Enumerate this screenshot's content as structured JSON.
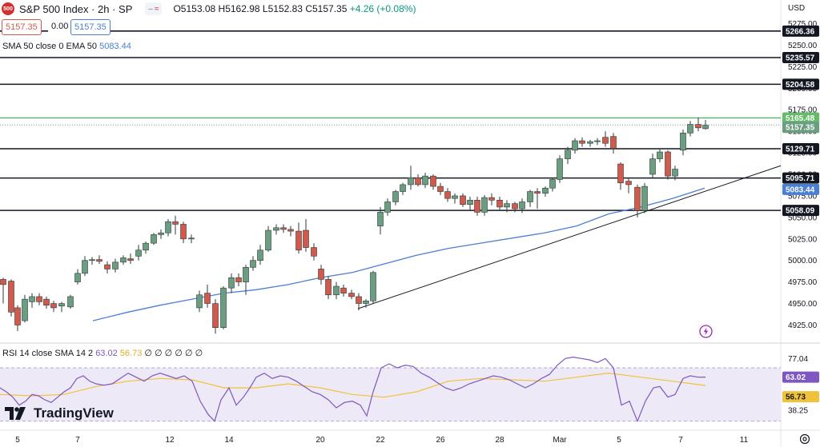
{
  "header": {
    "logo_text": "500",
    "title": "S&P 500 Index · 2h · SP",
    "toggle_minus": "–",
    "toggle_wave": "≈",
    "open": "O5153.08",
    "high": "H5162.98",
    "low": "L5152.83",
    "close": "C5157.35",
    "change": "+4.26 (+0.08%)"
  },
  "price_boxes": {
    "sell": "5157.35",
    "spread": "0.00",
    "buy": "5157.35"
  },
  "indicator_sma": {
    "label": "SMA 50 close 0 EMA 50",
    "value": "5083.44"
  },
  "indicator_rsi": {
    "label": "RSI 14 close SMA 14 2",
    "value1": "63.02",
    "value2": "56.73",
    "placeholders": "∅ ∅ ∅ ∅ ∅ ∅"
  },
  "axis": {
    "currency": "USD",
    "price_ticks": [
      "5275.00",
      "5250.00",
      "5225.00",
      "5200.00",
      "5175.00",
      "5150.00",
      "5125.00",
      "5100.00",
      "5075.00",
      "5050.00",
      "5025.00",
      "5000.00",
      "4975.00",
      "4950.00",
      "4925.00"
    ],
    "rsi_ticks": [
      "77.04",
      "38.25"
    ],
    "x_ticks": [
      "5",
      "7",
      "12",
      "14",
      "20",
      "22",
      "26",
      "28",
      "Mar",
      "5",
      "7",
      "11"
    ]
  },
  "branding": {
    "name": "TradingView"
  },
  "colors": {
    "up": "#6b9e80",
    "down": "#d25a4d",
    "sma": "#4a7fd1",
    "rsi": "#7e57c2",
    "rsi_sma": "#f0c23c",
    "green_line": "#4caf50",
    "rsi_band": "#ede9f7"
  },
  "chart_data": {
    "type": "candlestick",
    "price_range": [
      4905,
      5282
    ],
    "rsi_range": [
      25,
      82
    ],
    "horizontal_levels": [
      {
        "value": 5266.36,
        "label": "5266.36"
      },
      {
        "value": 5235.57,
        "label": "5235.57"
      },
      {
        "value": 5204.58,
        "label": "5204.58"
      },
      {
        "value": 5129.71,
        "label": "5129.71"
      },
      {
        "value": 5095.71,
        "label": "5095.71"
      },
      {
        "value": 5058.09,
        "label": "5058.09"
      }
    ],
    "green_level": {
      "value": 5165.48,
      "label": "5165.48"
    },
    "last_price": {
      "value": 5157.35,
      "label": "5157.35"
    },
    "sma_last": {
      "value": 5083.44,
      "label": "5083.44"
    },
    "rsi_last": {
      "value": 63.02,
      "label": "63.02"
    },
    "rsi_sma_last": {
      "value": 56.73,
      "label": "56.73"
    },
    "trendline": [
      [
        447,
        4944
      ],
      [
        975,
        5110
      ]
    ],
    "candles": [
      {
        "x": 4,
        "o": 4978,
        "h": 4980,
        "l": 4950,
        "c": 4972
      },
      {
        "x": 14,
        "o": 4976,
        "h": 4978,
        "l": 4935,
        "c": 4940
      },
      {
        "x": 22,
        "o": 4945,
        "h": 4948,
        "l": 4918,
        "c": 4925
      },
      {
        "x": 31,
        "o": 4930,
        "h": 4960,
        "l": 4928,
        "c": 4955
      },
      {
        "x": 40,
        "o": 4952,
        "h": 4962,
        "l": 4945,
        "c": 4958
      },
      {
        "x": 49,
        "o": 4958,
        "h": 4962,
        "l": 4948,
        "c": 4952
      },
      {
        "x": 58,
        "o": 4955,
        "h": 4958,
        "l": 4944,
        "c": 4948
      },
      {
        "x": 67,
        "o": 4950,
        "h": 4953,
        "l": 4940,
        "c": 4945
      },
      {
        "x": 77,
        "o": 4947,
        "h": 4952,
        "l": 4940,
        "c": 4950
      },
      {
        "x": 88,
        "o": 4946,
        "h": 4960,
        "l": 4944,
        "c": 4958
      },
      {
        "x": 97,
        "o": 4975,
        "h": 4990,
        "l": 4972,
        "c": 4985
      },
      {
        "x": 106,
        "o": 4985,
        "h": 5005,
        "l": 4982,
        "c": 5000
      },
      {
        "x": 115,
        "o": 5000,
        "h": 5004,
        "l": 4995,
        "c": 5001
      },
      {
        "x": 124,
        "o": 5001,
        "h": 5006,
        "l": 4996,
        "c": 4999
      },
      {
        "x": 134,
        "o": 4995,
        "h": 4999,
        "l": 4985,
        "c": 4990
      },
      {
        "x": 144,
        "o": 4990,
        "h": 5002,
        "l": 4986,
        "c": 4998
      },
      {
        "x": 154,
        "o": 4998,
        "h": 5006,
        "l": 4995,
        "c": 5003
      },
      {
        "x": 163,
        "o": 5002,
        "h": 5008,
        "l": 4996,
        "c": 5000
      },
      {
        "x": 173,
        "o": 5005,
        "h": 5018,
        "l": 5000,
        "c": 5012
      },
      {
        "x": 182,
        "o": 5012,
        "h": 5022,
        "l": 5008,
        "c": 5020
      },
      {
        "x": 192,
        "o": 5020,
        "h": 5032,
        "l": 5018,
        "c": 5030
      },
      {
        "x": 201,
        "o": 5030,
        "h": 5036,
        "l": 5025,
        "c": 5032
      },
      {
        "x": 210,
        "o": 5032,
        "h": 5048,
        "l": 5028,
        "c": 5045
      },
      {
        "x": 219,
        "o": 5045,
        "h": 5052,
        "l": 5030,
        "c": 5042
      },
      {
        "x": 229,
        "o": 5042,
        "h": 5045,
        "l": 5020,
        "c": 5025
      },
      {
        "x": 239,
        "o": 5025,
        "h": 5030,
        "l": 5020,
        "c": 5026
      },
      {
        "x": 249,
        "o": 4945,
        "h": 4965,
        "l": 4940,
        "c": 4960
      },
      {
        "x": 259,
        "o": 4962,
        "h": 4972,
        "l": 4945,
        "c": 4950
      },
      {
        "x": 269,
        "o": 4950,
        "h": 4955,
        "l": 4915,
        "c": 4922
      },
      {
        "x": 279,
        "o": 4922,
        "h": 4970,
        "l": 4920,
        "c": 4968
      },
      {
        "x": 289,
        "o": 4968,
        "h": 4985,
        "l": 4962,
        "c": 4980
      },
      {
        "x": 298,
        "o": 4980,
        "h": 4985,
        "l": 4970,
        "c": 4975
      },
      {
        "x": 307,
        "o": 4975,
        "h": 4995,
        "l": 4960,
        "c": 4992
      },
      {
        "x": 316,
        "o": 4992,
        "h": 5005,
        "l": 4988,
        "c": 5000
      },
      {
        "x": 325,
        "o": 5000,
        "h": 5018,
        "l": 4995,
        "c": 5012
      },
      {
        "x": 335,
        "o": 5012,
        "h": 5040,
        "l": 5010,
        "c": 5035
      },
      {
        "x": 345,
        "o": 5035,
        "h": 5042,
        "l": 5030,
        "c": 5038
      },
      {
        "x": 354,
        "o": 5038,
        "h": 5042,
        "l": 5032,
        "c": 5036
      },
      {
        "x": 363,
        "o": 5036,
        "h": 5040,
        "l": 5028,
        "c": 5034
      },
      {
        "x": 373,
        "o": 5034,
        "h": 5044,
        "l": 5008,
        "c": 5012
      },
      {
        "x": 382,
        "o": 5035,
        "h": 5048,
        "l": 5010,
        "c": 5015
      },
      {
        "x": 392,
        "o": 5015,
        "h": 5020,
        "l": 5000,
        "c": 5005
      },
      {
        "x": 401,
        "o": 4990,
        "h": 4995,
        "l": 4972,
        "c": 4978
      },
      {
        "x": 410,
        "o": 4978,
        "h": 4982,
        "l": 4955,
        "c": 4960
      },
      {
        "x": 420,
        "o": 4960,
        "h": 4975,
        "l": 4955,
        "c": 4970
      },
      {
        "x": 429,
        "o": 4968,
        "h": 4972,
        "l": 4958,
        "c": 4962
      },
      {
        "x": 439,
        "o": 4962,
        "h": 4966,
        "l": 4955,
        "c": 4958
      },
      {
        "x": 448,
        "o": 4958,
        "h": 4962,
        "l": 4942,
        "c": 4950
      },
      {
        "x": 457,
        "o": 4950,
        "h": 4955,
        "l": 4945,
        "c": 4953
      },
      {
        "x": 466,
        "o": 4953,
        "h": 4988,
        "l": 4950,
        "c": 4986
      },
      {
        "x": 475,
        "o": 5040,
        "h": 5062,
        "l": 5030,
        "c": 5056
      },
      {
        "x": 484,
        "o": 5056,
        "h": 5072,
        "l": 5052,
        "c": 5068
      },
      {
        "x": 494,
        "o": 5068,
        "h": 5082,
        "l": 5064,
        "c": 5080
      },
      {
        "x": 503,
        "o": 5080,
        "h": 5090,
        "l": 5076,
        "c": 5088
      },
      {
        "x": 513,
        "o": 5088,
        "h": 5110,
        "l": 5082,
        "c": 5096
      },
      {
        "x": 522,
        "o": 5096,
        "h": 5100,
        "l": 5086,
        "c": 5088
      },
      {
        "x": 531,
        "o": 5088,
        "h": 5102,
        "l": 5084,
        "c": 5098
      },
      {
        "x": 541,
        "o": 5098,
        "h": 5100,
        "l": 5082,
        "c": 5086
      },
      {
        "x": 550,
        "o": 5086,
        "h": 5090,
        "l": 5076,
        "c": 5080
      },
      {
        "x": 559,
        "o": 5080,
        "h": 5084,
        "l": 5068,
        "c": 5072
      },
      {
        "x": 568,
        "o": 5072,
        "h": 5078,
        "l": 5066,
        "c": 5075
      },
      {
        "x": 578,
        "o": 5075,
        "h": 5078,
        "l": 5062,
        "c": 5065
      },
      {
        "x": 587,
        "o": 5065,
        "h": 5074,
        "l": 5058,
        "c": 5070
      },
      {
        "x": 596,
        "o": 5070,
        "h": 5074,
        "l": 5052,
        "c": 5056
      },
      {
        "x": 605,
        "o": 5056,
        "h": 5076,
        "l": 5052,
        "c": 5073
      },
      {
        "x": 614,
        "o": 5073,
        "h": 5078,
        "l": 5064,
        "c": 5070
      },
      {
        "x": 624,
        "o": 5070,
        "h": 5074,
        "l": 5058,
        "c": 5062
      },
      {
        "x": 633,
        "o": 5062,
        "h": 5070,
        "l": 5056,
        "c": 5066
      },
      {
        "x": 643,
        "o": 5066,
        "h": 5068,
        "l": 5056,
        "c": 5060
      },
      {
        "x": 652,
        "o": 5060,
        "h": 5072,
        "l": 5055,
        "c": 5068
      },
      {
        "x": 662,
        "o": 5068,
        "h": 5082,
        "l": 5062,
        "c": 5080
      },
      {
        "x": 671,
        "o": 5080,
        "h": 5084,
        "l": 5060,
        "c": 5078
      },
      {
        "x": 681,
        "o": 5078,
        "h": 5086,
        "l": 5074,
        "c": 5084
      },
      {
        "x": 690,
        "o": 5084,
        "h": 5096,
        "l": 5080,
        "c": 5094
      },
      {
        "x": 699,
        "o": 5094,
        "h": 5122,
        "l": 5090,
        "c": 5118
      },
      {
        "x": 709,
        "o": 5118,
        "h": 5132,
        "l": 5112,
        "c": 5128
      },
      {
        "x": 718,
        "o": 5128,
        "h": 5142,
        "l": 5124,
        "c": 5139
      },
      {
        "x": 727,
        "o": 5139,
        "h": 5143,
        "l": 5132,
        "c": 5136
      },
      {
        "x": 737,
        "o": 5136,
        "h": 5140,
        "l": 5132,
        "c": 5138
      },
      {
        "x": 746,
        "o": 5138,
        "h": 5142,
        "l": 5134,
        "c": 5139
      },
      {
        "x": 756,
        "o": 5143,
        "h": 5150,
        "l": 5132,
        "c": 5136
      },
      {
        "x": 766,
        "o": 5144,
        "h": 5148,
        "l": 5124,
        "c": 5130
      },
      {
        "x": 775,
        "o": 5112,
        "h": 5114,
        "l": 5082,
        "c": 5090
      },
      {
        "x": 785,
        "o": 5092,
        "h": 5096,
        "l": 5078,
        "c": 5088
      },
      {
        "x": 796,
        "o": 5085,
        "h": 5088,
        "l": 5050,
        "c": 5058
      },
      {
        "x": 805,
        "o": 5058,
        "h": 5090,
        "l": 5055,
        "c": 5086
      },
      {
        "x": 815,
        "o": 5100,
        "h": 5124,
        "l": 5096,
        "c": 5118
      },
      {
        "x": 824,
        "o": 5118,
        "h": 5130,
        "l": 5114,
        "c": 5126
      },
      {
        "x": 834,
        "o": 5126,
        "h": 5128,
        "l": 5094,
        "c": 5098
      },
      {
        "x": 843,
        "o": 5098,
        "h": 5110,
        "l": 5093,
        "c": 5106
      },
      {
        "x": 853,
        "o": 5128,
        "h": 5152,
        "l": 5122,
        "c": 5148
      },
      {
        "x": 862,
        "o": 5148,
        "h": 5162,
        "l": 5144,
        "c": 5158
      },
      {
        "x": 872,
        "o": 5158,
        "h": 5166,
        "l": 5150,
        "c": 5154
      },
      {
        "x": 881,
        "o": 5153,
        "h": 5163,
        "l": 5152,
        "c": 5157
      }
    ],
    "sma_path": [
      [
        116,
        4930
      ],
      [
        160,
        4940
      ],
      [
        200,
        4948
      ],
      [
        240,
        4955
      ],
      [
        280,
        4962
      ],
      [
        320,
        4966
      ],
      [
        360,
        4972
      ],
      [
        400,
        4980
      ],
      [
        440,
        4986
      ],
      [
        480,
        4996
      ],
      [
        520,
        5006
      ],
      [
        560,
        5014
      ],
      [
        600,
        5020
      ],
      [
        640,
        5026
      ],
      [
        680,
        5032
      ],
      [
        720,
        5040
      ],
      [
        760,
        5054
      ],
      [
        800,
        5062
      ],
      [
        840,
        5072
      ],
      [
        880,
        5084
      ]
    ],
    "rsi_series": [
      [
        0,
        55
      ],
      [
        8,
        52
      ],
      [
        16,
        48
      ],
      [
        24,
        42
      ],
      [
        32,
        45
      ],
      [
        40,
        50
      ],
      [
        48,
        49
      ],
      [
        56,
        46
      ],
      [
        64,
        44
      ],
      [
        72,
        48
      ],
      [
        80,
        52
      ],
      [
        88,
        55
      ],
      [
        96,
        62
      ],
      [
        104,
        64
      ],
      [
        112,
        60
      ],
      [
        120,
        58
      ],
      [
        130,
        57
      ],
      [
        140,
        58
      ],
      [
        150,
        62
      ],
      [
        160,
        66
      ],
      [
        170,
        63
      ],
      [
        180,
        60
      ],
      [
        190,
        64
      ],
      [
        200,
        66
      ],
      [
        210,
        64
      ],
      [
        220,
        62
      ],
      [
        230,
        64
      ],
      [
        240,
        60
      ],
      [
        250,
        45
      ],
      [
        260,
        35
      ],
      [
        268,
        30
      ],
      [
        276,
        46
      ],
      [
        286,
        55
      ],
      [
        295,
        42
      ],
      [
        304,
        48
      ],
      [
        312,
        55
      ],
      [
        320,
        63
      ],
      [
        330,
        66
      ],
      [
        340,
        62
      ],
      [
        350,
        64
      ],
      [
        360,
        63
      ],
      [
        370,
        60
      ],
      [
        380,
        56
      ],
      [
        390,
        52
      ],
      [
        400,
        50
      ],
      [
        410,
        46
      ],
      [
        420,
        40
      ],
      [
        430,
        44
      ],
      [
        440,
        45
      ],
      [
        450,
        42
      ],
      [
        458,
        34
      ],
      [
        466,
        52
      ],
      [
        476,
        70
      ],
      [
        486,
        73
      ],
      [
        496,
        70
      ],
      [
        506,
        72
      ],
      [
        516,
        71
      ],
      [
        526,
        66
      ],
      [
        536,
        63
      ],
      [
        546,
        59
      ],
      [
        556,
        55
      ],
      [
        566,
        53
      ],
      [
        576,
        55
      ],
      [
        586,
        58
      ],
      [
        596,
        60
      ],
      [
        606,
        62
      ],
      [
        616,
        64
      ],
      [
        626,
        63
      ],
      [
        636,
        61
      ],
      [
        646,
        58
      ],
      [
        656,
        55
      ],
      [
        666,
        58
      ],
      [
        676,
        62
      ],
      [
        686,
        65
      ],
      [
        696,
        72
      ],
      [
        706,
        77
      ],
      [
        716,
        78
      ],
      [
        726,
        77
      ],
      [
        736,
        76
      ],
      [
        746,
        74
      ],
      [
        756,
        77
      ],
      [
        766,
        70
      ],
      [
        776,
        42
      ],
      [
        786,
        45
      ],
      [
        796,
        30
      ],
      [
        806,
        45
      ],
      [
        816,
        55
      ],
      [
        824,
        56
      ],
      [
        834,
        48
      ],
      [
        843,
        50
      ],
      [
        853,
        62
      ],
      [
        862,
        64
      ],
      [
        872,
        63
      ],
      [
        881,
        63.02
      ]
    ],
    "rsi_sma_series": [
      [
        0,
        50
      ],
      [
        40,
        49
      ],
      [
        80,
        50
      ],
      [
        120,
        56
      ],
      [
        160,
        60
      ],
      [
        200,
        62
      ],
      [
        240,
        61
      ],
      [
        280,
        55
      ],
      [
        320,
        55
      ],
      [
        360,
        58
      ],
      [
        400,
        55
      ],
      [
        440,
        50
      ],
      [
        480,
        48
      ],
      [
        520,
        52
      ],
      [
        560,
        60
      ],
      [
        600,
        62
      ],
      [
        640,
        61
      ],
      [
        680,
        60
      ],
      [
        720,
        63
      ],
      [
        760,
        66
      ],
      [
        800,
        63
      ],
      [
        840,
        60
      ],
      [
        881,
        56.73
      ]
    ],
    "rsi_band": [
      70,
      30
    ]
  }
}
